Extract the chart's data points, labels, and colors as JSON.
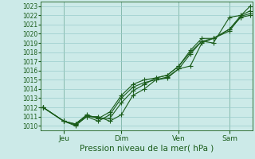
{
  "title": "",
  "xlabel": "Pression niveau de la mer( hPa )",
  "ylabel": "",
  "bg_color": "#cceae8",
  "line_color": "#1a5c1a",
  "grid_color": "#99cccc",
  "text_color": "#1a5c1a",
  "ylim": [
    1009.5,
    1023.5
  ],
  "xlim": [
    -0.1,
    9.1
  ],
  "yticks": [
    1010,
    1011,
    1012,
    1013,
    1014,
    1015,
    1016,
    1017,
    1018,
    1019,
    1020,
    1021,
    1022,
    1023
  ],
  "xtick_positions": [
    0.9,
    3.4,
    5.9,
    8.1
  ],
  "xtick_labels": [
    "Jeu",
    "Dim",
    "Ven",
    "Sam"
  ],
  "lines": [
    {
      "x": [
        0.0,
        0.9,
        1.4,
        1.9,
        2.4,
        2.9,
        3.4,
        3.9,
        4.4,
        4.9,
        5.4,
        5.9,
        6.4,
        6.9,
        7.4,
        8.1,
        8.6,
        9.0
      ],
      "y": [
        1012.0,
        1010.5,
        1010.0,
        1011.0,
        1011.0,
        1010.5,
        1011.2,
        1013.3,
        1014.0,
        1015.0,
        1015.2,
        1016.2,
        1017.8,
        1019.2,
        1019.0,
        1021.8,
        1022.0,
        1023.0
      ]
    },
    {
      "x": [
        0.0,
        0.9,
        1.4,
        1.9,
        2.4,
        2.9,
        3.4,
        3.9,
        4.4,
        4.9,
        5.4,
        5.9,
        6.4,
        6.9,
        7.4,
        8.1,
        8.6,
        9.0
      ],
      "y": [
        1012.0,
        1010.5,
        1010.2,
        1011.1,
        1010.8,
        1010.8,
        1012.5,
        1013.8,
        1014.5,
        1015.2,
        1015.5,
        1016.5,
        1018.0,
        1019.2,
        1019.5,
        1020.3,
        1021.9,
        1022.2
      ]
    },
    {
      "x": [
        0.0,
        0.9,
        1.4,
        1.9,
        2.4,
        2.9,
        3.4,
        3.9,
        4.4,
        4.9,
        5.4,
        5.9,
        6.4,
        6.9,
        7.4,
        8.1,
        8.6,
        9.0
      ],
      "y": [
        1012.0,
        1010.5,
        1010.1,
        1011.0,
        1010.5,
        1011.2,
        1013.0,
        1014.2,
        1014.7,
        1015.0,
        1015.3,
        1016.2,
        1016.5,
        1019.0,
        1019.5,
        1020.5,
        1022.0,
        1022.5
      ]
    },
    {
      "x": [
        0.0,
        0.9,
        1.4,
        1.9,
        2.4,
        2.9,
        3.4,
        3.9,
        4.4,
        4.9,
        5.4,
        5.9,
        6.4,
        6.9,
        7.4,
        8.1,
        8.6,
        9.0
      ],
      "y": [
        1012.0,
        1010.5,
        1010.2,
        1011.2,
        1010.8,
        1011.5,
        1013.3,
        1014.5,
        1015.0,
        1015.2,
        1015.5,
        1016.5,
        1018.2,
        1019.5,
        1019.5,
        1020.5,
        1021.8,
        1022.0
      ]
    }
  ],
  "marker": "+",
  "markersize": 4,
  "linewidth": 0.8,
  "ytick_fontsize": 5.5,
  "xtick_fontsize": 6.5,
  "xlabel_fontsize": 7.5
}
